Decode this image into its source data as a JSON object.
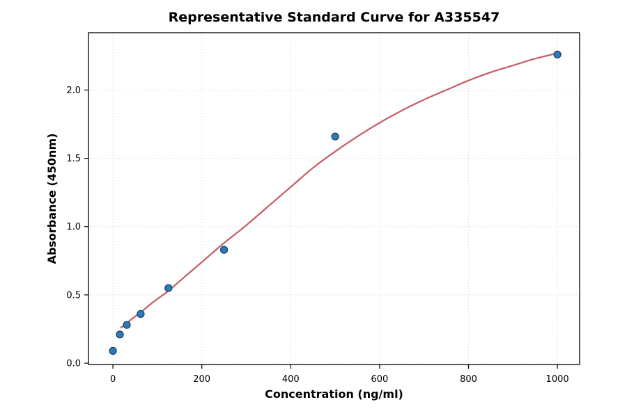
{
  "chart_data": {
    "type": "scatter",
    "title": "Representative Standard Curve for A335547",
    "xlabel": "Concentration (ng/ml)",
    "ylabel": "Absorbance (450nm)",
    "xlim": [
      -55,
      1050
    ],
    "ylim": [
      -0.01,
      2.42
    ],
    "x_ticks": [
      0,
      200,
      400,
      600,
      800,
      1000
    ],
    "y_ticks": [
      0.0,
      0.5,
      1.0,
      1.5,
      2.0
    ],
    "grid": true,
    "legend": null,
    "points": {
      "x": [
        0,
        15.6,
        31.2,
        62.5,
        125,
        250,
        500,
        1000
      ],
      "y": [
        0.09,
        0.21,
        0.28,
        0.36,
        0.55,
        0.83,
        1.66,
        2.26
      ]
    },
    "fit_curve": {
      "x": [
        18,
        30,
        45,
        62,
        80,
        100,
        125,
        150,
        175,
        200,
        225,
        250,
        300,
        350,
        400,
        450,
        500,
        550,
        600,
        650,
        700,
        750,
        800,
        850,
        900,
        950,
        1000
      ],
      "y": [
        0.26,
        0.29,
        0.33,
        0.37,
        0.42,
        0.47,
        0.53,
        0.6,
        0.67,
        0.74,
        0.81,
        0.88,
        1.01,
        1.15,
        1.29,
        1.43,
        1.55,
        1.66,
        1.76,
        1.85,
        1.93,
        2.0,
        2.07,
        2.13,
        2.18,
        2.23,
        2.27
      ]
    },
    "colors": {
      "point_fill": "#2b7bba",
      "point_edge": "#153d5c",
      "curve": "#c45c65",
      "grid": "#cfcfcf",
      "axis": "#000000"
    }
  }
}
